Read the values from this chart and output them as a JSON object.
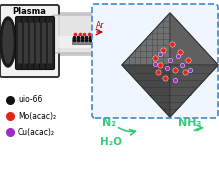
{
  "background_color": "#ffffff",
  "plasma_label": "Plasma",
  "ar_label": "Ar",
  "n2_label": "N₂",
  "h2o_label": "H₂O",
  "nh3_label": "NH₃",
  "legend_items": [
    {
      "label": "uio-66",
      "color": "#111111"
    },
    {
      "label": "Mo(acac)₂",
      "color": "#e8221a"
    },
    {
      "label": "Cu(acac)₂",
      "color": "#9b2ec4"
    }
  ],
  "dashed_box_color": "#4488cc",
  "mo_color": "#e8221a",
  "cu_color": "#9b2ec4",
  "label_color": "#33cc77"
}
